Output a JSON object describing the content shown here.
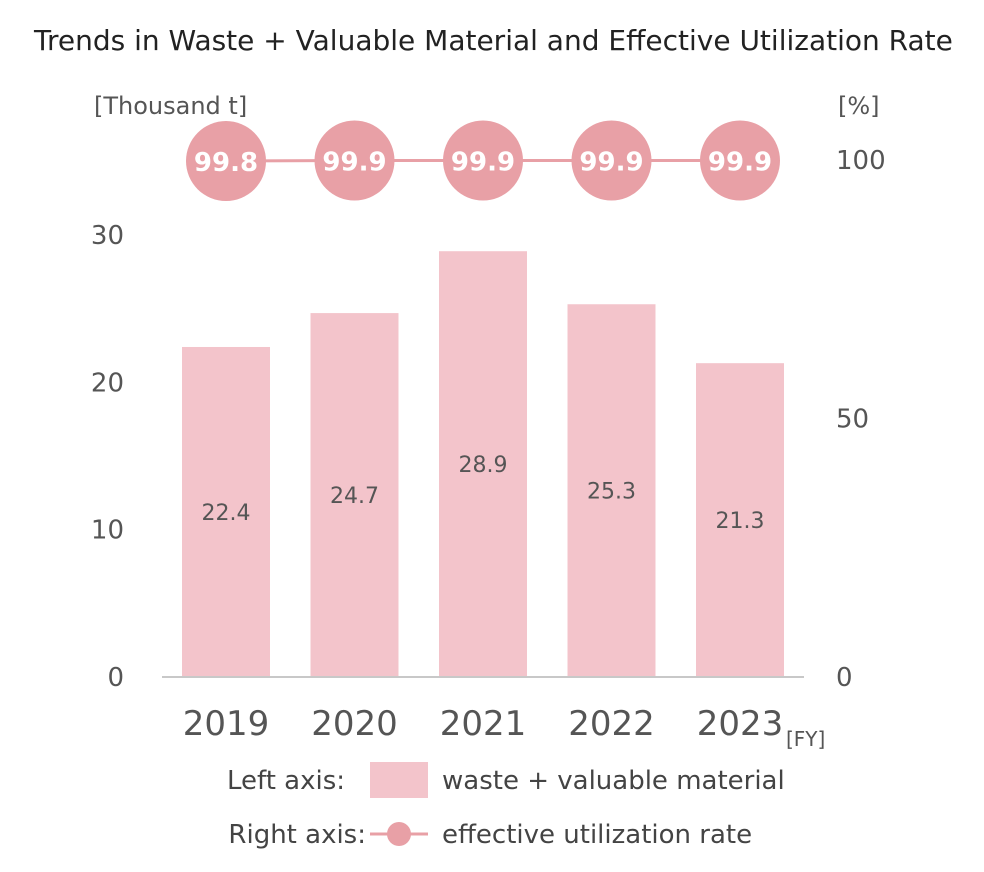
{
  "chart_data": {
    "type": "bar",
    "title": "Trends in Waste + Valuable Material and Effective Utilization Rate",
    "categories": [
      "2019",
      "2020",
      "2021",
      "2022",
      "2023"
    ],
    "x_unit": "[FY]",
    "series": [
      {
        "name": "waste + valuable material",
        "axis": "left",
        "type": "bar",
        "values": [
          22.4,
          24.7,
          28.9,
          25.3,
          21.3
        ],
        "labels": [
          "22.4",
          "24.7",
          "28.9",
          "25.3",
          "21.3"
        ],
        "color": "#f3c4cb"
      },
      {
        "name": "effective utilization rate",
        "axis": "right",
        "type": "line",
        "values": [
          99.8,
          99.9,
          99.9,
          99.9,
          99.9
        ],
        "labels": [
          "99.8",
          "99.9",
          "99.9",
          "99.9",
          "99.9"
        ],
        "color": "#e8a0a6"
      }
    ],
    "left_axis": {
      "unit": "[Thousand t]",
      "ylim": [
        0,
        30
      ],
      "ticks": [
        "0",
        "10",
        "20",
        "30"
      ]
    },
    "right_axis": {
      "unit": "[%]",
      "ylim": [
        0,
        100
      ],
      "ticks": [
        "0",
        "50",
        "100"
      ]
    },
    "legend": {
      "left_prefix": "Left axis:",
      "left_label": "waste + valuable material",
      "right_prefix": "Right axis:",
      "right_label": "effective utilization rate",
      "placement": "bottom"
    },
    "grid": false
  }
}
